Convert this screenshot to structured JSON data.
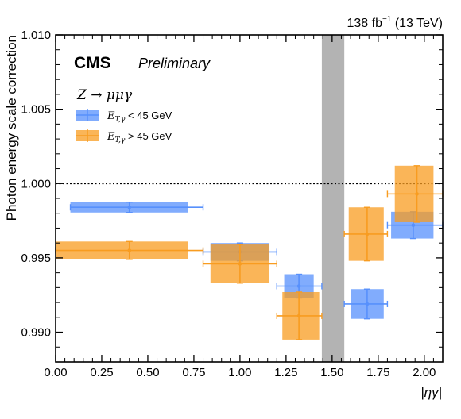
{
  "chart_data": {
    "type": "scatter",
    "luminosity": "138 fb",
    "luminosity_exp": "−1",
    "energy": " (13 TeV)",
    "cms_label": "CMS",
    "preliminary_label": "Preliminary",
    "process": "Z → μμγ",
    "xlabel": "|ηγ|",
    "ylabel": "Photon energy scale correction",
    "xlim": [
      0.0,
      2.1
    ],
    "ylim": [
      0.988,
      1.01
    ],
    "xticks": [
      "0.00",
      "0.25",
      "0.50",
      "0.75",
      "1.00",
      "1.25",
      "1.50",
      "1.75",
      "2.00"
    ],
    "xtick_values": [
      0.0,
      0.25,
      0.5,
      0.75,
      1.0,
      1.25,
      1.5,
      1.75,
      2.0
    ],
    "yticks": [
      "0.990",
      "0.995",
      "1.000",
      "1.005",
      "1.010"
    ],
    "ytick_values": [
      0.99,
      0.995,
      1.0,
      1.005,
      1.01
    ],
    "reference_line": 1.0,
    "excluded_region": [
      1.4442,
      1.566
    ],
    "legend_placement": "upper-left",
    "series": [
      {
        "name": "E_T,γ < 45 GeV",
        "legend_math": "E",
        "legend_sub": "T,γ",
        "legend_rest": " < 45 GeV",
        "color": "#5790fc",
        "points": [
          {
            "x": 0.4,
            "xlo": 0.08,
            "xhi": 0.8,
            "blo": 0.08,
            "bhi": 0.72,
            "y": 0.9984,
            "yerr": 0.00035
          },
          {
            "x": 1.0,
            "xlo": 0.8,
            "xhi": 1.2,
            "blo": 0.84,
            "bhi": 1.16,
            "y": 0.9954,
            "yerr": 0.0006
          },
          {
            "x": 1.32,
            "xlo": 1.2,
            "xhi": 1.4442,
            "blo": 1.24,
            "bhi": 1.4,
            "y": 0.9931,
            "yerr": 0.0008
          },
          {
            "x": 1.69,
            "xlo": 1.566,
            "xhi": 1.8,
            "blo": 1.6,
            "bhi": 1.78,
            "y": 0.9919,
            "yerr": 0.001
          },
          {
            "x": 1.94,
            "xlo": 1.8,
            "xhi": 2.1,
            "blo": 1.82,
            "bhi": 2.05,
            "y": 0.9972,
            "yerr": 0.0009
          }
        ]
      },
      {
        "name": "E_T,γ > 45 GeV",
        "legend_math": "E",
        "legend_sub": "T,γ",
        "legend_rest": " > 45 GeV",
        "color": "#f89c20",
        "points": [
          {
            "x": 0.4,
            "xlo": 0.0,
            "xhi": 0.8,
            "blo": 0.0,
            "bhi": 0.72,
            "y": 0.9955,
            "yerr": 0.0006
          },
          {
            "x": 1.0,
            "xlo": 0.8,
            "xhi": 1.2,
            "blo": 0.84,
            "bhi": 1.16,
            "y": 0.9946,
            "yerr": 0.0013
          },
          {
            "x": 1.32,
            "xlo": 1.2,
            "xhi": 1.4442,
            "blo": 1.23,
            "bhi": 1.43,
            "y": 0.9911,
            "yerr": 0.0016
          },
          {
            "x": 1.69,
            "xlo": 1.566,
            "xhi": 1.8,
            "blo": 1.59,
            "bhi": 1.78,
            "y": 0.9966,
            "yerr": 0.0018
          },
          {
            "x": 1.96,
            "xlo": 1.8,
            "xhi": 2.1,
            "blo": 1.84,
            "bhi": 2.05,
            "y": 0.9993,
            "yerr": 0.0019
          }
        ]
      }
    ]
  }
}
